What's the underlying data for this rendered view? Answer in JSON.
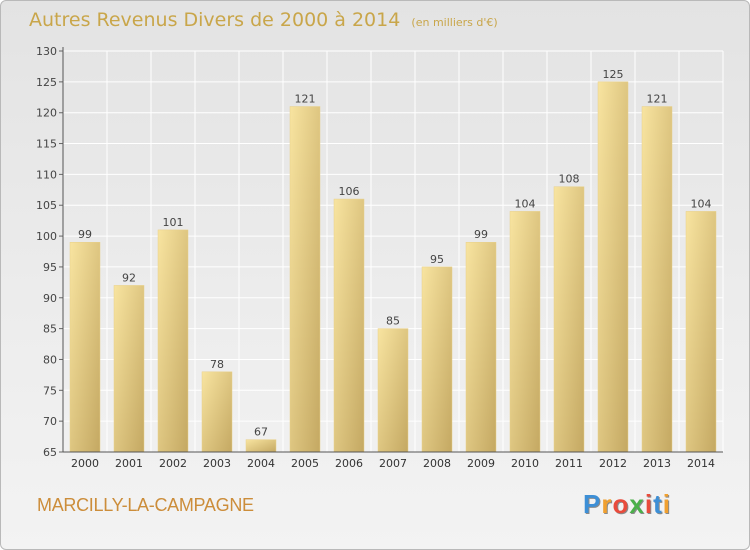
{
  "chart_data": {
    "type": "bar",
    "title": "Autres Revenus Divers de 2000 à 2014",
    "subtitle": "(en milliers d'€)",
    "categories": [
      "2000",
      "2001",
      "2002",
      "2003",
      "2004",
      "2005",
      "2006",
      "2007",
      "2008",
      "2009",
      "2010",
      "2011",
      "2012",
      "2013",
      "2014"
    ],
    "values": [
      99,
      92,
      101,
      78,
      67,
      121,
      106,
      85,
      95,
      99,
      104,
      108,
      125,
      121,
      104
    ],
    "ylim": [
      65,
      130
    ],
    "yticks": [
      65,
      70,
      75,
      80,
      85,
      90,
      95,
      100,
      105,
      110,
      115,
      120,
      125,
      130
    ],
    "grid": true,
    "colors": {
      "bar_light": "#f6df96",
      "bar_dark": "#c8ac66",
      "title": "#c9a64a",
      "grid": "#ffffff"
    }
  },
  "commune": "MARCILLY-LA-CAMPAGNE",
  "brand": {
    "letters": [
      "P",
      "r",
      "o",
      "x",
      "i",
      "t",
      "i"
    ],
    "colors": [
      "#3d8fd6",
      "#f0a030",
      "#e94b3c",
      "#4bb04a",
      "#e94b3c",
      "#3d8fd6",
      "#f0a030"
    ]
  }
}
